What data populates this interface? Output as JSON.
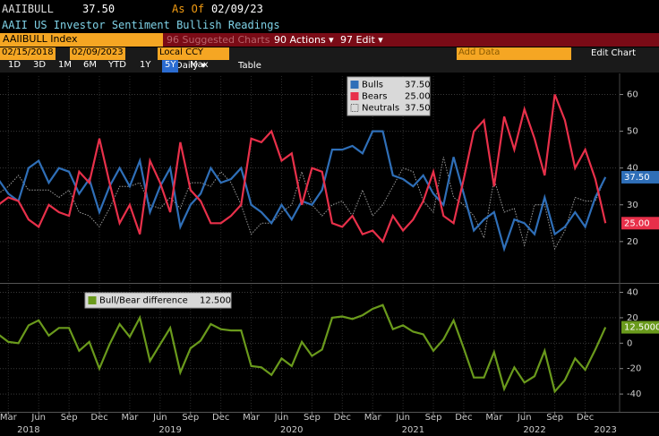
{
  "header": {
    "ticker": "AAIIBULL",
    "last": "37.50",
    "as_of_label": "As Of",
    "as_of": "02/09/23",
    "description": "AAII US Investor Sentiment Bullish Readings"
  },
  "toolbar": {
    "security": "AAIIBULL Index",
    "suggested": "96 Suggested Charts",
    "actions": "90 Actions ▾",
    "edit": "97 Edit ▾",
    "start_date": "02/15/2018",
    "end_date": "02/09/2023",
    "currency": "Local CCY",
    "add_data": "Add Data",
    "edit_chart": "Edit Chart",
    "ranges": [
      "1D",
      "3D",
      "1M",
      "6M",
      "YTD",
      "1Y",
      "5Y",
      "Max"
    ],
    "active_range_index": 6,
    "frequency": "Daily ▾",
    "table": "Table"
  },
  "chart_data": [
    {
      "type": "line",
      "grid": true,
      "ylim": [
        9,
        65
      ],
      "yticks": [
        20,
        30,
        40,
        50,
        60
      ],
      "x": [
        "2018-02",
        "2018-03",
        "2018-04",
        "2018-05",
        "2018-06",
        "2018-07",
        "2018-08",
        "2018-09",
        "2018-10",
        "2018-11",
        "2018-12",
        "2019-01",
        "2019-02",
        "2019-03",
        "2019-04",
        "2019-05",
        "2019-06",
        "2019-07",
        "2019-08",
        "2019-09",
        "2019-10",
        "2019-11",
        "2019-12",
        "2020-01",
        "2020-02",
        "2020-03",
        "2020-04",
        "2020-05",
        "2020-06",
        "2020-07",
        "2020-08",
        "2020-09",
        "2020-10",
        "2020-11",
        "2020-12",
        "2021-01",
        "2021-02",
        "2021-03",
        "2021-04",
        "2021-05",
        "2021-06",
        "2021-07",
        "2021-08",
        "2021-09",
        "2021-10",
        "2021-11",
        "2021-12",
        "2022-01",
        "2022-02",
        "2022-03",
        "2022-04",
        "2022-05",
        "2022-06",
        "2022-07",
        "2022-08",
        "2022-09",
        "2022-10",
        "2022-11",
        "2022-12",
        "2023-01",
        "2023-02"
      ],
      "series": [
        {
          "name": "Bulls",
          "color": "#2f6fb8",
          "last_label": "37.50",
          "values": [
            37,
            33,
            31,
            40,
            42,
            36,
            40,
            39,
            33,
            37,
            28,
            35,
            40,
            35,
            42,
            28,
            35,
            40,
            24,
            30,
            33,
            40,
            36,
            37,
            40,
            30,
            28,
            25,
            30,
            26,
            31,
            30,
            34,
            45,
            45,
            46,
            44,
            50,
            50,
            38,
            37,
            35,
            38,
            33,
            30,
            43,
            33,
            23,
            26,
            28,
            18,
            26,
            25,
            22,
            32,
            22,
            24,
            28,
            24,
            32,
            37.5
          ]
        },
        {
          "name": "Bears",
          "color": "#e8304a",
          "last_label": "25.00",
          "values": [
            30,
            32,
            31,
            26,
            24,
            30,
            28,
            27,
            39,
            36,
            48,
            36,
            25,
            30,
            22,
            42,
            36,
            28,
            47,
            34,
            31,
            25,
            25,
            27,
            30,
            48,
            47,
            50,
            42,
            44,
            30,
            40,
            39,
            25,
            24,
            27,
            22,
            23,
            20,
            27,
            23,
            26,
            31,
            39,
            27,
            25,
            37,
            50,
            53,
            35,
            54,
            45,
            56,
            48,
            38,
            60,
            53,
            40,
            45,
            37,
            25
          ]
        },
        {
          "name": "Neutrals",
          "color": "#9a9a9a",
          "dashed": true,
          "last_label": "37.50",
          "values": [
            33,
            35,
            38,
            34,
            34,
            34,
            32,
            34,
            28,
            27,
            24,
            29,
            35,
            35,
            36,
            30,
            29,
            32,
            29,
            36,
            36,
            35,
            39,
            36,
            30,
            22,
            25,
            25,
            28,
            30,
            39,
            30,
            27,
            30,
            31,
            27,
            34,
            27,
            30,
            35,
            40,
            39,
            31,
            28,
            43,
            32,
            30,
            27,
            21,
            37,
            28,
            29,
            19,
            30,
            30,
            18,
            23,
            32,
            31,
            31,
            37.5
          ]
        }
      ]
    },
    {
      "type": "line",
      "grid": true,
      "ylim": [
        -54,
        46
      ],
      "yticks": [
        -40,
        -20,
        0,
        20,
        40
      ],
      "x": [
        "2018-02",
        "2018-03",
        "2018-04",
        "2018-05",
        "2018-06",
        "2018-07",
        "2018-08",
        "2018-09",
        "2018-10",
        "2018-11",
        "2018-12",
        "2019-01",
        "2019-02",
        "2019-03",
        "2019-04",
        "2019-05",
        "2019-06",
        "2019-07",
        "2019-08",
        "2019-09",
        "2019-10",
        "2019-11",
        "2019-12",
        "2020-01",
        "2020-02",
        "2020-03",
        "2020-04",
        "2020-05",
        "2020-06",
        "2020-07",
        "2020-08",
        "2020-09",
        "2020-10",
        "2020-11",
        "2020-12",
        "2021-01",
        "2021-02",
        "2021-03",
        "2021-04",
        "2021-05",
        "2021-06",
        "2021-07",
        "2021-08",
        "2021-09",
        "2021-10",
        "2021-11",
        "2021-12",
        "2022-01",
        "2022-02",
        "2022-03",
        "2022-04",
        "2022-05",
        "2022-06",
        "2022-07",
        "2022-08",
        "2022-09",
        "2022-10",
        "2022-11",
        "2022-12",
        "2023-01",
        "2023-02"
      ],
      "series": [
        {
          "name": "Bull/Bear difference",
          "color": "#6a9a1c",
          "last_label": "12.5000",
          "values": [
            7,
            1,
            0,
            14,
            18,
            6,
            12,
            12,
            -6,
            1,
            -20,
            -1,
            15,
            5,
            20,
            -14,
            -1,
            12,
            -23,
            -4,
            2,
            15,
            11,
            10,
            10,
            -18,
            -19,
            -25,
            -12,
            -18,
            1,
            -10,
            -5,
            20,
            21,
            19,
            22,
            27,
            30,
            11,
            14,
            9,
            7,
            -6,
            3,
            18,
            -4,
            -27,
            -27,
            -7,
            -36,
            -19,
            -31,
            -26,
            -6,
            -38,
            -29,
            -12,
            -21,
            -5,
            12.5
          ]
        }
      ],
      "xticks": [
        {
          "value": "2018-03",
          "label": "Mar"
        },
        {
          "value": "2018-06",
          "label": "Jun"
        },
        {
          "value": "2018-09",
          "label": "Sep"
        },
        {
          "value": "2018-12",
          "label": "Dec"
        },
        {
          "value": "2019-03",
          "label": "Mar"
        },
        {
          "value": "2019-06",
          "label": "Jun"
        },
        {
          "value": "2019-09",
          "label": "Sep"
        },
        {
          "value": "2019-12",
          "label": "Dec"
        },
        {
          "value": "2020-03",
          "label": "Mar"
        },
        {
          "value": "2020-06",
          "label": "Jun"
        },
        {
          "value": "2020-09",
          "label": "Sep"
        },
        {
          "value": "2020-12",
          "label": "Dec"
        },
        {
          "value": "2021-03",
          "label": "Mar"
        },
        {
          "value": "2021-06",
          "label": "Jun"
        },
        {
          "value": "2021-09",
          "label": "Sep"
        },
        {
          "value": "2021-12",
          "label": "Dec"
        },
        {
          "value": "2022-03",
          "label": "Mar"
        },
        {
          "value": "2022-06",
          "label": "Jun"
        },
        {
          "value": "2022-09",
          "label": "Sep"
        },
        {
          "value": "2022-12",
          "label": "Dec"
        }
      ],
      "year_labels": [
        {
          "value": "2018-05",
          "label": "2018"
        },
        {
          "value": "2019-07",
          "label": "2019"
        },
        {
          "value": "2020-07",
          "label": "2020"
        },
        {
          "value": "2021-07",
          "label": "2021"
        },
        {
          "value": "2022-07",
          "label": "2022"
        },
        {
          "value": "2023-02",
          "label": "2023"
        }
      ]
    }
  ]
}
